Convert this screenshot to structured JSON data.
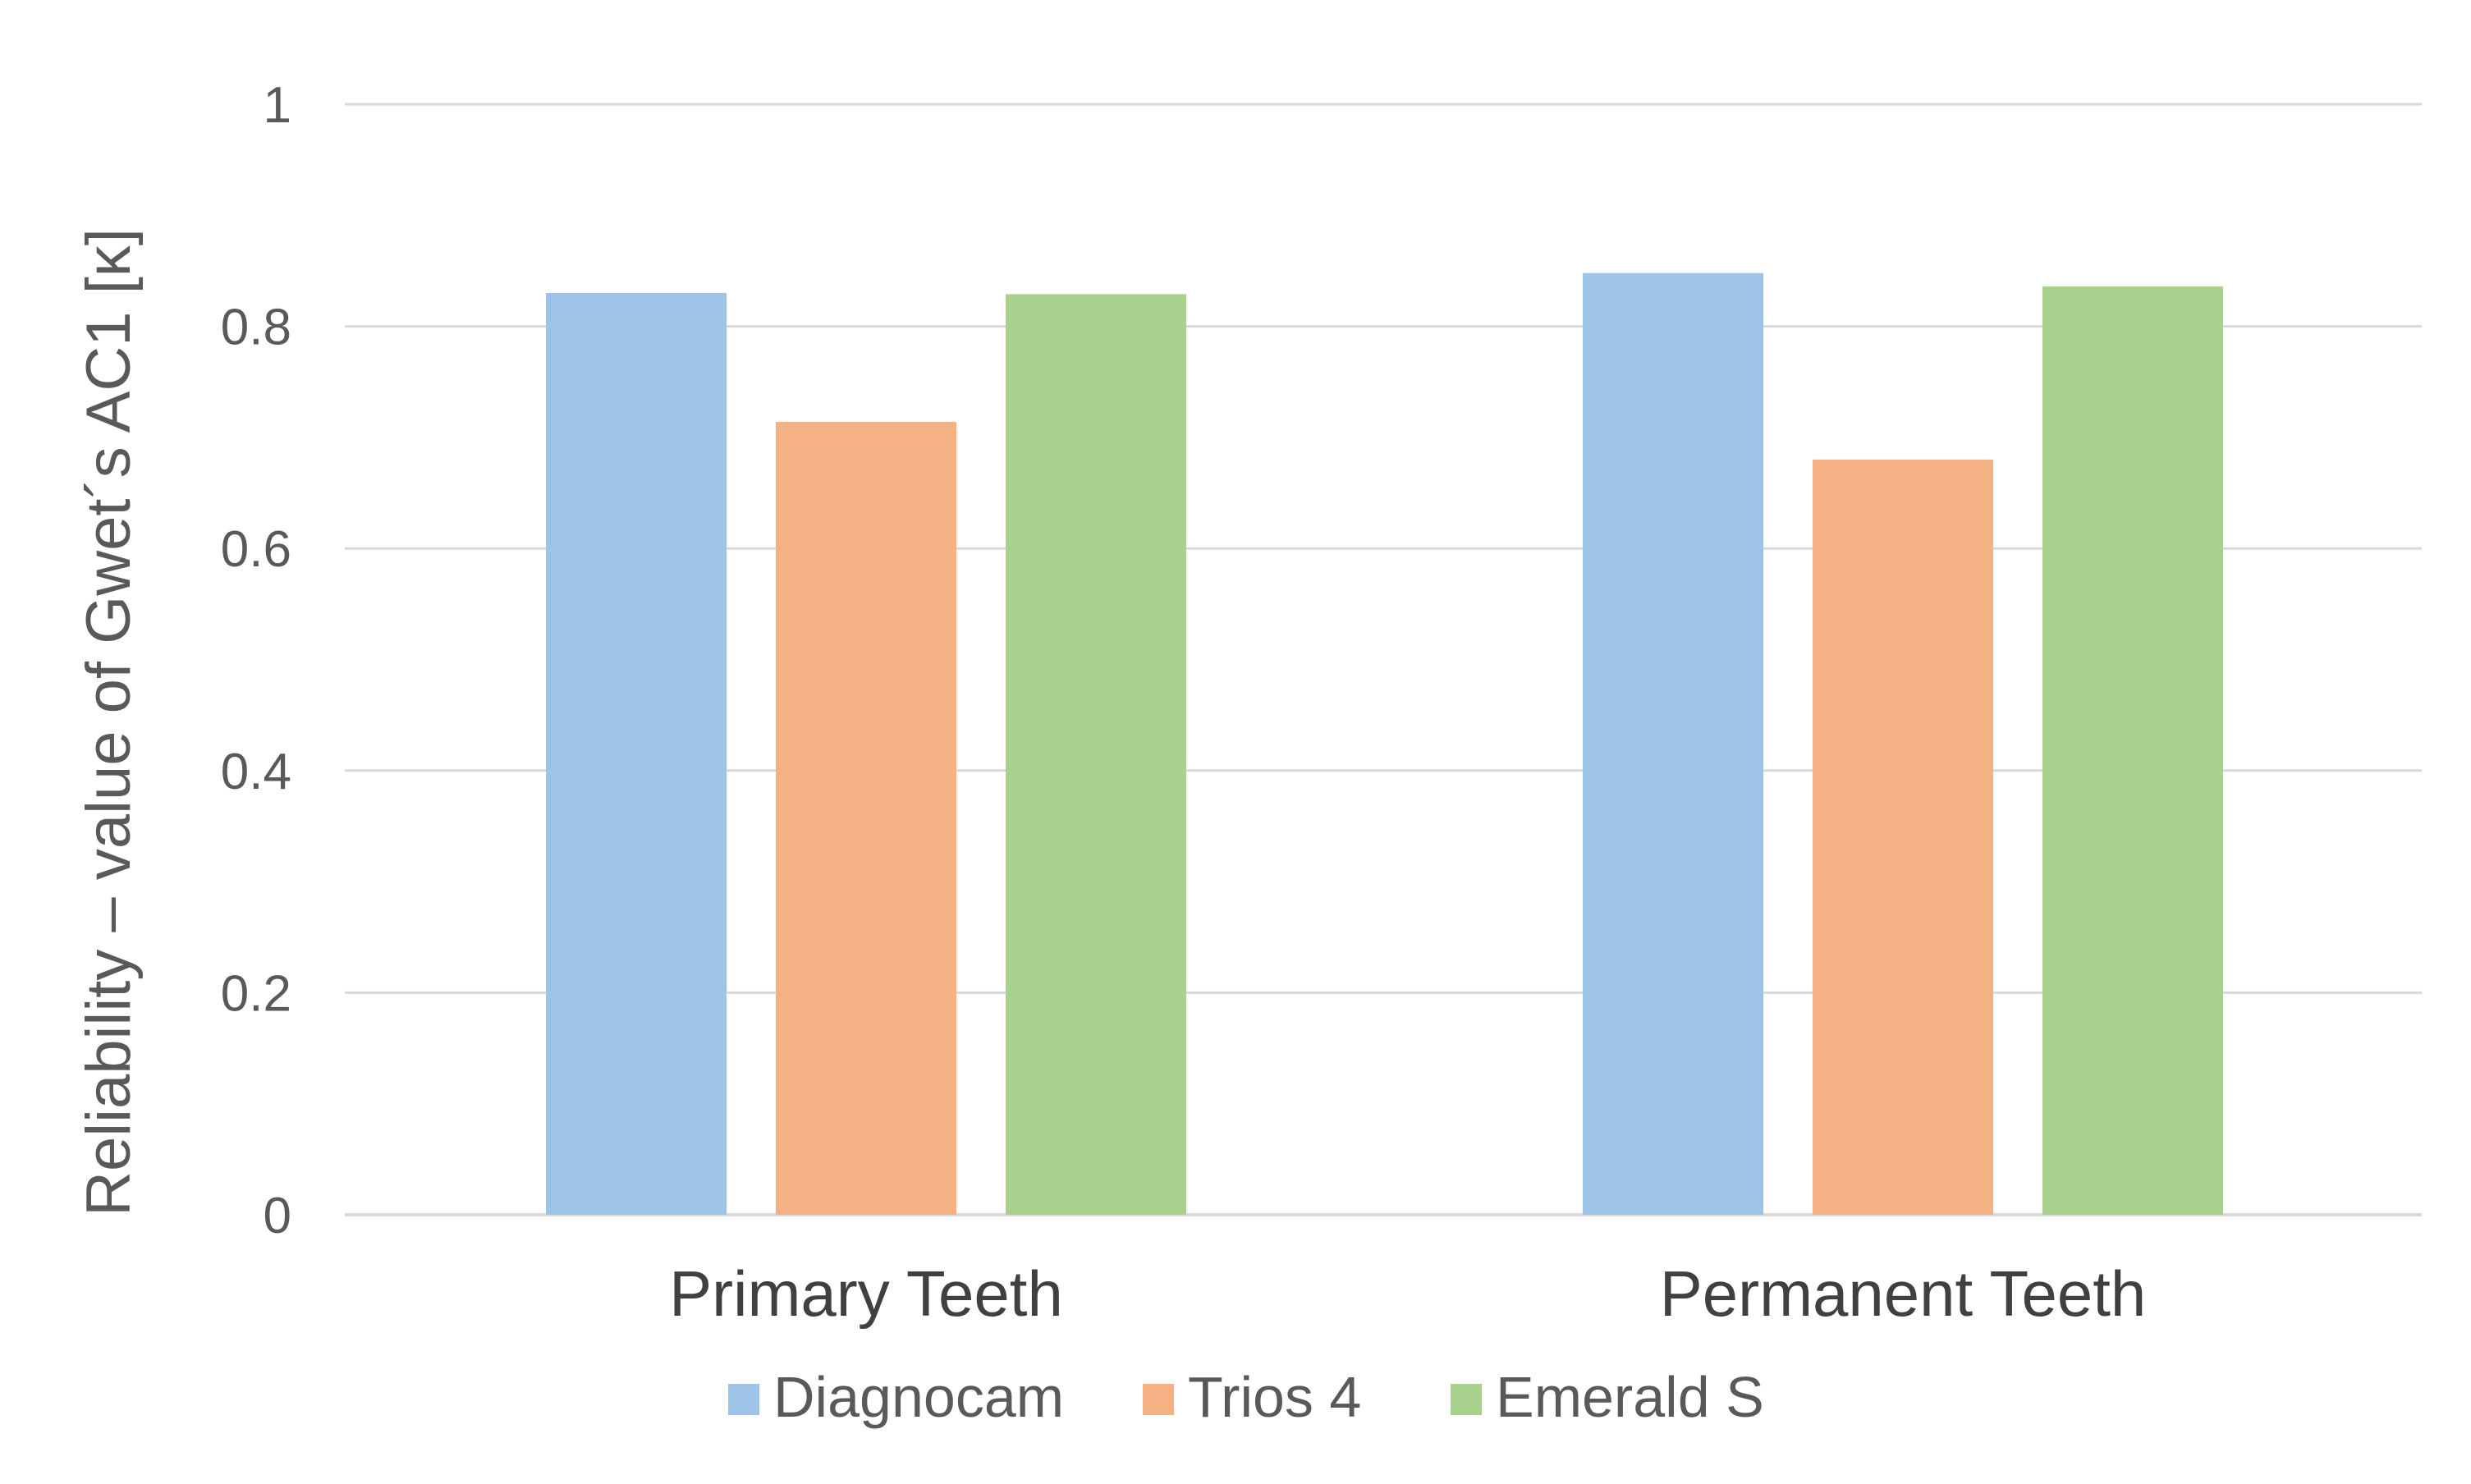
{
  "chart_data": {
    "type": "bar",
    "title": "",
    "xlabel": "",
    "ylabel": "Reliability – value of Gwet´s AC1 [κ]",
    "categories": [
      "Primary Teeth",
      "Permanent Teeth"
    ],
    "series": [
      {
        "name": "Diagnocam",
        "values": [
          0.83,
          0.848
        ],
        "color": "#9DC3E6"
      },
      {
        "name": "Trios 4",
        "values": [
          0.714,
          0.68
        ],
        "color": "#F4B183"
      },
      {
        "name": "Emerald S",
        "values": [
          0.829,
          0.836
        ],
        "color": "#A9D18E"
      }
    ],
    "ylim": [
      0,
      1
    ],
    "yticks": [
      {
        "value": 0,
        "label": "0"
      },
      {
        "value": 0.2,
        "label": "0.2"
      },
      {
        "value": 0.4,
        "label": "0.4"
      },
      {
        "value": 0.6,
        "label": "0.6"
      },
      {
        "value": 0.8,
        "label": "0.8"
      },
      {
        "value": 1,
        "label": "1"
      }
    ],
    "grid": true,
    "legend": "bottom"
  }
}
